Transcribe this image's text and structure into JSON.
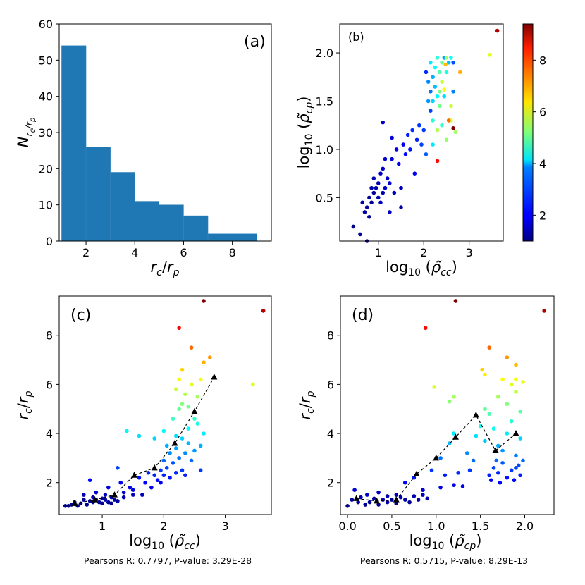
{
  "chart_data": [
    {
      "panel": "a",
      "type": "bar",
      "label": "(a)",
      "xlabel": "r_c/r_p",
      "ylabel": "N_{r_c/r_p}",
      "xlim": [
        0.9,
        9.6
      ],
      "ylim": [
        0,
        60
      ],
      "xticks": [
        2,
        4,
        6,
        8
      ],
      "yticks": [
        0,
        10,
        20,
        30,
        40,
        50,
        60
      ],
      "bin_edges": [
        1,
        2,
        3,
        4,
        5,
        6,
        7,
        9
      ],
      "values": [
        54,
        26,
        19,
        11,
        10,
        7,
        2
      ],
      "color": "#1f77b4"
    },
    {
      "panel": "b",
      "type": "scatter",
      "label": "(b)",
      "xlabel": "log10(ρ̃cc)",
      "ylabel": "log10(ρ̃cp)",
      "xlim": [
        0.15,
        3.75
      ],
      "ylim": [
        0.05,
        2.3
      ],
      "xticks": [
        1,
        2,
        3
      ],
      "yticks": [
        0.5,
        1.0,
        1.5,
        2.0
      ],
      "colorbar": {
        "colormap": "jet",
        "vmin": 1,
        "vmax": 9.4,
        "ticks": [
          2,
          4,
          6,
          8
        ]
      },
      "points": [
        [
          0.45,
          0.2,
          1.1
        ],
        [
          0.6,
          0.12,
          1.2
        ],
        [
          0.65,
          0.45,
          1.3
        ],
        [
          0.7,
          0.35,
          1.2
        ],
        [
          0.75,
          0.4,
          1.3
        ],
        [
          0.75,
          0.05,
          1.1
        ],
        [
          0.8,
          0.3,
          1.2
        ],
        [
          0.8,
          0.5,
          1.3
        ],
        [
          0.85,
          0.45,
          1.2
        ],
        [
          0.85,
          0.6,
          1.4
        ],
        [
          0.9,
          0.55,
          1.3
        ],
        [
          0.9,
          0.7,
          1.5
        ],
        [
          0.95,
          0.6,
          1.4
        ],
        [
          1.0,
          0.5,
          1.3
        ],
        [
          1.0,
          0.65,
          1.4
        ],
        [
          1.05,
          0.45,
          1.5
        ],
        [
          1.05,
          0.75,
          1.5
        ],
        [
          1.1,
          0.55,
          1.4
        ],
        [
          1.1,
          0.8,
          1.6
        ],
        [
          1.15,
          0.6,
          1.6
        ],
        [
          1.15,
          0.9,
          1.7
        ],
        [
          1.2,
          0.7,
          1.6
        ],
        [
          1.25,
          0.65,
          1.7
        ],
        [
          1.25,
          0.35,
          1.6
        ],
        [
          1.3,
          0.9,
          1.7
        ],
        [
          1.35,
          0.55,
          1.5
        ],
        [
          1.4,
          1.0,
          1.8
        ],
        [
          1.45,
          0.85,
          1.9
        ],
        [
          1.5,
          0.6,
          1.5
        ],
        [
          1.55,
          1.05,
          2.0
        ],
        [
          1.6,
          0.95,
          2.1
        ],
        [
          1.65,
          1.15,
          2.3
        ],
        [
          1.7,
          1.0,
          2.2
        ],
        [
          1.75,
          1.2,
          2.4
        ],
        [
          1.85,
          1.1,
          2.3
        ],
        [
          1.9,
          1.25,
          2.5
        ],
        [
          1.95,
          1.05,
          2.6
        ],
        [
          2.0,
          1.2,
          2.5
        ],
        [
          1.1,
          1.28,
          1.5
        ],
        [
          1.3,
          1.12,
          1.8
        ],
        [
          1.5,
          0.4,
          1.3
        ],
        [
          1.8,
          0.75,
          1.9
        ],
        [
          2.05,
          0.95,
          2.8
        ],
        [
          2.1,
          1.5,
          3.3
        ],
        [
          2.1,
          1.7,
          3.2
        ],
        [
          2.15,
          1.9,
          4.0
        ],
        [
          2.15,
          1.6,
          3.0
        ],
        [
          2.2,
          1.75,
          3.5
        ],
        [
          2.2,
          1.5,
          3.8
        ],
        [
          2.25,
          1.85,
          4.2
        ],
        [
          2.25,
          1.65,
          3.6
        ],
        [
          2.3,
          1.95,
          4.5
        ],
        [
          2.3,
          1.55,
          4.1
        ],
        [
          2.35,
          1.8,
          4.8
        ],
        [
          2.35,
          1.6,
          5.2
        ],
        [
          2.4,
          1.9,
          5.0
        ],
        [
          2.4,
          1.7,
          5.8
        ],
        [
          2.45,
          1.95,
          3.4
        ],
        [
          2.45,
          1.55,
          3.9
        ],
        [
          2.5,
          1.8,
          4.4
        ],
        [
          2.5,
          1.95,
          5.5
        ],
        [
          2.55,
          1.9,
          3.6
        ],
        [
          2.6,
          1.95,
          4.2
        ],
        [
          2.65,
          1.9,
          2.7
        ],
        [
          2.65,
          1.6,
          3.1
        ],
        [
          2.2,
          1.3,
          4.5
        ],
        [
          2.3,
          1.2,
          5.6
        ],
        [
          2.4,
          1.25,
          4.6
        ],
        [
          2.5,
          1.1,
          5.4
        ],
        [
          2.6,
          1.3,
          5.9
        ],
        [
          2.05,
          1.8,
          2.4
        ],
        [
          2.15,
          1.4,
          2.6
        ],
        [
          2.6,
          1.45,
          5.8
        ],
        [
          2.55,
          1.3,
          7.5
        ],
        [
          2.2,
          1.05,
          4.0
        ],
        [
          2.3,
          0.88,
          8.3
        ],
        [
          2.45,
          1.62,
          6.2
        ],
        [
          2.7,
          1.18,
          5.5
        ],
        [
          2.65,
          1.22,
          9.4
        ],
        [
          2.8,
          1.8,
          6.9
        ],
        [
          3.45,
          1.98,
          6.0
        ],
        [
          3.62,
          2.23,
          9.0
        ],
        [
          2.48,
          1.88,
          6.8
        ],
        [
          2.35,
          1.45,
          5.1
        ]
      ]
    },
    {
      "panel": "c",
      "type": "scatter",
      "label": "(c)",
      "xlabel": "log10(ρ̃cc)",
      "ylabel": "r_c/r_p",
      "xlim": [
        0.3,
        3.75
      ],
      "ylim": [
        0.7,
        9.6
      ],
      "xticks": [
        1,
        2,
        3
      ],
      "yticks": [
        2,
        4,
        6,
        8
      ],
      "stats_text": "Pearsons R: 0.7797, P-value: 3.29E-28",
      "trend": {
        "x": [
          0.55,
          0.88,
          1.2,
          1.52,
          1.85,
          2.18,
          2.5,
          2.82
        ],
        "y": [
          1.15,
          1.3,
          1.5,
          2.3,
          2.6,
          3.6,
          4.9,
          6.3
        ]
      },
      "points": [
        [
          0.4,
          1.05
        ],
        [
          0.45,
          1.05
        ],
        [
          0.5,
          1.1
        ],
        [
          0.55,
          1.2
        ],
        [
          0.6,
          1.05
        ],
        [
          0.65,
          1.15
        ],
        [
          0.7,
          1.3
        ],
        [
          0.7,
          1.5
        ],
        [
          0.75,
          1.1
        ],
        [
          0.8,
          1.25
        ],
        [
          0.8,
          2.1
        ],
        [
          0.85,
          1.4
        ],
        [
          0.85,
          1.2
        ],
        [
          0.9,
          1.3
        ],
        [
          0.9,
          1.6
        ],
        [
          0.95,
          1.2
        ],
        [
          1.0,
          1.35
        ],
        [
          1.0,
          1.15
        ],
        [
          1.05,
          1.3
        ],
        [
          1.05,
          1.5
        ],
        [
          1.1,
          1.2
        ],
        [
          1.1,
          1.8
        ],
        [
          1.15,
          1.4
        ],
        [
          1.15,
          1.15
        ],
        [
          1.2,
          1.3
        ],
        [
          1.25,
          1.25
        ],
        [
          1.3,
          2.0
        ],
        [
          1.35,
          1.6
        ],
        [
          1.35,
          1.4
        ],
        [
          1.45,
          1.8
        ],
        [
          1.5,
          1.7
        ],
        [
          1.6,
          2.2
        ],
        [
          1.65,
          1.5
        ],
        [
          1.7,
          2.0
        ],
        [
          1.75,
          2.4
        ],
        [
          1.8,
          1.8
        ],
        [
          1.85,
          2.3
        ],
        [
          1.9,
          2.1
        ],
        [
          1.95,
          2.5
        ],
        [
          2.0,
          2.3
        ],
        [
          2.0,
          2.9
        ],
        [
          2.05,
          2.6
        ],
        [
          2.1,
          2.2
        ],
        [
          2.1,
          3.2
        ],
        [
          2.15,
          2.8
        ],
        [
          2.2,
          2.4
        ],
        [
          2.2,
          3.4
        ],
        [
          2.25,
          3.0
        ],
        [
          2.3,
          2.5
        ],
        [
          2.3,
          3.8
        ],
        [
          2.35,
          3.2
        ],
        [
          2.35,
          2.3
        ],
        [
          2.4,
          3.6
        ],
        [
          2.4,
          4.2
        ],
        [
          2.45,
          2.9
        ],
        [
          2.5,
          3.3
        ],
        [
          2.55,
          4.4
        ],
        [
          2.6,
          3.5
        ],
        [
          2.6,
          2.5
        ],
        [
          2.65,
          4.0
        ],
        [
          1.25,
          2.6
        ],
        [
          1.5,
          1.5
        ],
        [
          1.4,
          4.1
        ],
        [
          1.6,
          3.9
        ],
        [
          1.85,
          3.8
        ],
        [
          2.0,
          4.1
        ],
        [
          2.15,
          4.6
        ],
        [
          2.25,
          5.0
        ],
        [
          2.3,
          5.2
        ],
        [
          2.35,
          5.6
        ],
        [
          2.4,
          5.1
        ],
        [
          2.45,
          6.0
        ],
        [
          2.55,
          5.5
        ],
        [
          2.25,
          6.2
        ],
        [
          2.3,
          6.6
        ],
        [
          2.6,
          6.2
        ],
        [
          2.65,
          6.9
        ],
        [
          2.75,
          7.1
        ],
        [
          2.45,
          7.5
        ],
        [
          2.25,
          8.3
        ],
        [
          2.65,
          9.4
        ],
        [
          3.45,
          6.0
        ],
        [
          3.62,
          9.0
        ],
        [
          2.2,
          5.8
        ],
        [
          2.5,
          4.6
        ],
        [
          1.95,
          2.0
        ],
        [
          2.05,
          3.5
        ],
        [
          2.2,
          3.9
        ]
      ]
    },
    {
      "panel": "d",
      "type": "scatter",
      "label": "(d)",
      "xlabel": "log10(ρ̃cp)",
      "ylabel": "r_c/r_p",
      "xlim": [
        -0.08,
        2.33
      ],
      "ylim": [
        0.7,
        9.6
      ],
      "xticks": [
        0.0,
        0.5,
        1.0,
        1.5,
        2.0
      ],
      "yticks": [
        2,
        4,
        6,
        8
      ],
      "stats_text": "Pearsons R: 0.5715, P-value: 8.29E-13",
      "trend": {
        "x": [
          0.1,
          0.33,
          0.55,
          0.78,
          1.0,
          1.22,
          1.45,
          1.67,
          1.9
        ],
        "y": [
          1.35,
          1.25,
          1.3,
          2.35,
          3.0,
          3.85,
          4.75,
          3.3,
          4.0
        ]
      },
      "points": [
        [
          0.0,
          1.05
        ],
        [
          0.05,
          1.3
        ],
        [
          0.08,
          1.7
        ],
        [
          0.12,
          1.2
        ],
        [
          0.15,
          1.4
        ],
        [
          0.2,
          1.1
        ],
        [
          0.22,
          1.5
        ],
        [
          0.25,
          1.2
        ],
        [
          0.3,
          1.35
        ],
        [
          0.35,
          1.1
        ],
        [
          0.35,
          1.6
        ],
        [
          0.4,
          1.3
        ],
        [
          0.45,
          1.45
        ],
        [
          0.45,
          1.2
        ],
        [
          0.5,
          1.3
        ],
        [
          0.55,
          1.5
        ],
        [
          0.55,
          1.15
        ],
        [
          0.6,
          1.4
        ],
        [
          0.65,
          1.3
        ],
        [
          0.7,
          1.2
        ],
        [
          0.75,
          1.45
        ],
        [
          0.8,
          1.3
        ],
        [
          0.85,
          1.5
        ],
        [
          0.9,
          1.35
        ],
        [
          0.65,
          2.0
        ],
        [
          0.75,
          2.2
        ],
        [
          0.85,
          1.7
        ],
        [
          0.95,
          2.5
        ],
        [
          1.05,
          1.8
        ],
        [
          1.1,
          2.3
        ],
        [
          1.2,
          1.9
        ],
        [
          1.3,
          1.85
        ],
        [
          1.05,
          3.0
        ],
        [
          1.15,
          3.6
        ],
        [
          1.2,
          4.0
        ],
        [
          1.25,
          2.4
        ],
        [
          1.35,
          3.2
        ],
        [
          1.45,
          3.9
        ],
        [
          1.5,
          4.3
        ],
        [
          1.55,
          3.7
        ],
        [
          1.65,
          4.2
        ],
        [
          1.7,
          3.5
        ],
        [
          1.75,
          3.3
        ],
        [
          1.8,
          4.0
        ],
        [
          1.85,
          4.5
        ],
        [
          1.9,
          3.1
        ],
        [
          1.95,
          3.8
        ],
        [
          1.6,
          2.3
        ],
        [
          1.65,
          2.6
        ],
        [
          1.7,
          2.4
        ],
        [
          1.75,
          2.8
        ],
        [
          1.8,
          2.2
        ],
        [
          1.85,
          2.5
        ],
        [
          1.9,
          2.6
        ],
        [
          1.95,
          2.3
        ],
        [
          1.98,
          2.9
        ],
        [
          1.62,
          2.1
        ],
        [
          1.72,
          2.0
        ],
        [
          1.88,
          2.1
        ],
        [
          1.93,
          2.7
        ],
        [
          1.55,
          5.0
        ],
        [
          1.6,
          4.8
        ],
        [
          1.7,
          5.5
        ],
        [
          1.8,
          5.2
        ],
        [
          1.9,
          5.7
        ],
        [
          1.95,
          4.9
        ],
        [
          1.85,
          6.0
        ],
        [
          1.9,
          6.2
        ],
        [
          1.98,
          6.1
        ],
        [
          1.75,
          6.2
        ],
        [
          1.52,
          6.6
        ],
        [
          1.55,
          6.4
        ],
        [
          1.6,
          7.5
        ],
        [
          1.8,
          7.1
        ],
        [
          1.9,
          6.8
        ],
        [
          1.2,
          5.5
        ],
        [
          1.15,
          5.3
        ],
        [
          0.98,
          5.9
        ],
        [
          0.88,
          8.3
        ],
        [
          1.22,
          9.4
        ],
        [
          2.22,
          9.0
        ],
        [
          1.38,
          2.5
        ],
        [
          1.42,
          2.9
        ],
        [
          1.68,
          2.9
        ]
      ]
    }
  ]
}
